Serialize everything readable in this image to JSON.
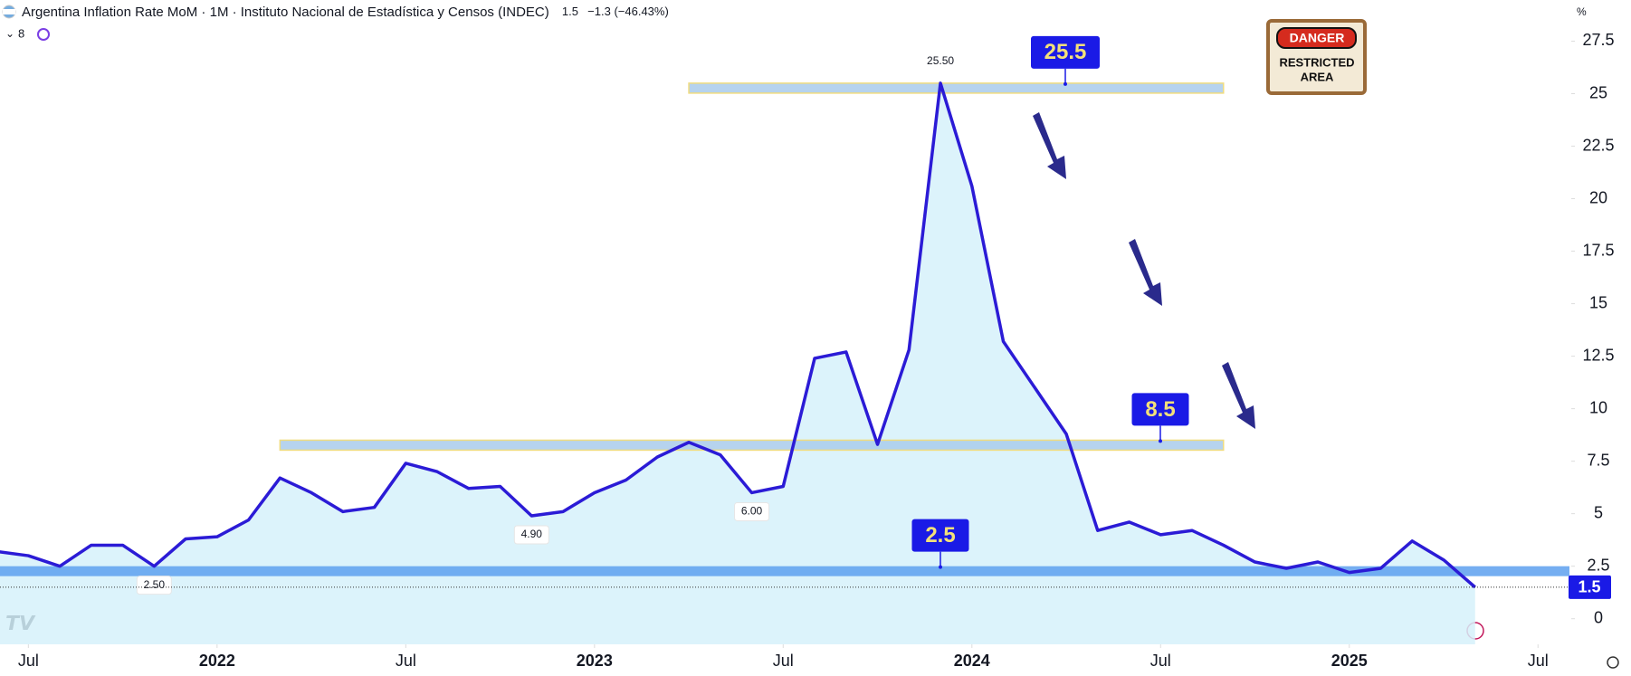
{
  "chart_data": {
    "type": "line",
    "title": "Argentina Inflation Rate MoM · 1M · Instituto Nacional de Estadística y Censos (INDEC)",
    "change_label": "−1.3 (−46.43%)",
    "y_unit": "%",
    "color": "#2b1bd6",
    "fill": "#d6f1fa",
    "x": [
      "2021-06",
      "2021-07",
      "2021-08",
      "2021-09",
      "2021-10",
      "2021-11",
      "2021-12",
      "2022-01",
      "2022-02",
      "2022-03",
      "2022-04",
      "2022-05",
      "2022-06",
      "2022-07",
      "2022-08",
      "2022-09",
      "2022-10",
      "2022-11",
      "2022-12",
      "2023-01",
      "2023-02",
      "2023-03",
      "2023-04",
      "2023-05",
      "2023-06",
      "2023-07",
      "2023-08",
      "2023-09",
      "2023-10",
      "2023-11",
      "2023-12",
      "2024-01",
      "2024-02",
      "2024-03",
      "2024-04",
      "2024-05",
      "2024-06",
      "2024-07",
      "2024-08",
      "2024-09",
      "2024-10",
      "2024-11",
      "2024-12",
      "2025-01",
      "2025-02",
      "2025-03",
      "2025-04",
      "2025-05"
    ],
    "values": [
      3.2,
      3.0,
      2.5,
      3.5,
      3.5,
      2.5,
      3.8,
      3.9,
      4.7,
      6.7,
      6.0,
      5.1,
      5.3,
      7.4,
      7.0,
      6.2,
      6.3,
      4.9,
      5.1,
      6.0,
      6.6,
      7.7,
      8.4,
      7.8,
      6.0,
      6.3,
      12.4,
      12.7,
      8.3,
      12.8,
      25.5,
      20.6,
      13.2,
      11.0,
      8.8,
      4.2,
      4.6,
      4.0,
      4.2,
      3.5,
      2.7,
      2.4,
      2.7,
      2.2,
      2.4,
      3.7,
      2.8,
      1.5
    ],
    "xlim": [
      "2021-06",
      "2025-08"
    ],
    "ylim": [
      -1.22,
      29.46
    ],
    "xticks": [
      {
        "value": "2021-07",
        "label": "Jul"
      },
      {
        "value": "2022-01",
        "label": "2022"
      },
      {
        "value": "2022-07",
        "label": "Jul"
      },
      {
        "value": "2023-01",
        "label": "2023"
      },
      {
        "value": "2023-07",
        "label": "Jul"
      },
      {
        "value": "2024-01",
        "label": "2024"
      },
      {
        "value": "2024-07",
        "label": "Jul"
      },
      {
        "value": "2025-01",
        "label": "2025"
      },
      {
        "value": "2025-07",
        "label": "Jul"
      }
    ],
    "yticks": [
      0,
      2.5,
      5,
      7.5,
      10,
      12.5,
      15,
      17.5,
      20,
      22.5,
      25,
      27.5
    ],
    "point_labels": [
      {
        "x": "2021-11",
        "label": "2.50"
      },
      {
        "x": "2022-11",
        "label": "4.90"
      },
      {
        "x": "2023-06",
        "label": "6.00"
      },
      {
        "x": "2023-12",
        "label": "25.50"
      }
    ],
    "levels": [
      {
        "value": 25.5,
        "label": "25.5",
        "x0": "2023-04",
        "x1": "2024-09",
        "color": "#a9cbeb"
      },
      {
        "value": 8.5,
        "label": "8.5",
        "x0": "2022-03",
        "x1": "2024-09",
        "color": "#a9cbeb"
      },
      {
        "value": 2.5,
        "label": "2.5",
        "x0": "2021-06",
        "x1": "2025-08",
        "color": "#5da0ee"
      }
    ],
    "sign": {
      "top": "DANGER",
      "middle": "RESTRICTED",
      "bottom": "AREA"
    }
  },
  "toolbar": {
    "count": "8"
  }
}
